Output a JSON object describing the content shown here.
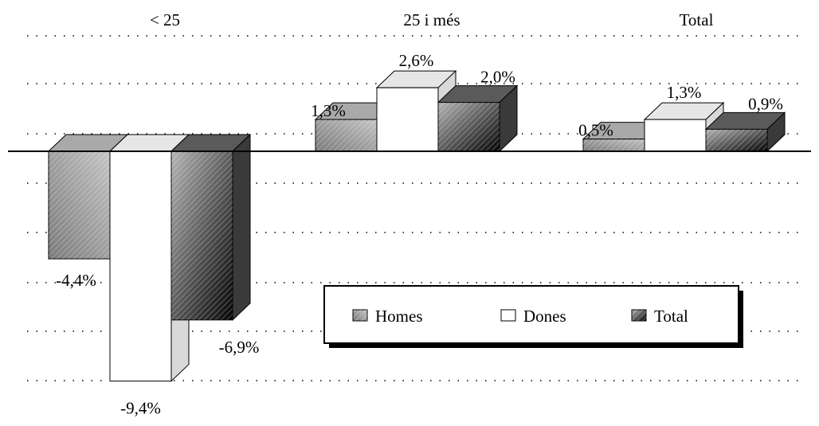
{
  "chart_data": {
    "type": "bar",
    "style": "3d-clustered",
    "categories": [
      "< 25",
      "25 i més",
      "Total"
    ],
    "series": [
      {
        "name": "Homes",
        "values": [
          -4.4,
          1.3,
          0.5
        ],
        "labels": [
          "-4,4%",
          "1,3%",
          "0,5%"
        ],
        "color": "#a0a0a0"
      },
      {
        "name": "Dones",
        "values": [
          -9.4,
          2.6,
          1.3
        ],
        "labels": [
          "-9,4%",
          "2,6%",
          "1,3%"
        ],
        "color": "#ffffff"
      },
      {
        "name": "Total",
        "values": [
          -6.9,
          2.0,
          0.9
        ],
        "labels": [
          "-6,9%",
          "2,0%",
          "0,9%"
        ],
        "color": "#505050"
      }
    ],
    "ylim": [
      -10.5,
      3.0
    ],
    "grid": "dotted-horizontal",
    "legend_position": "bottom-right"
  }
}
